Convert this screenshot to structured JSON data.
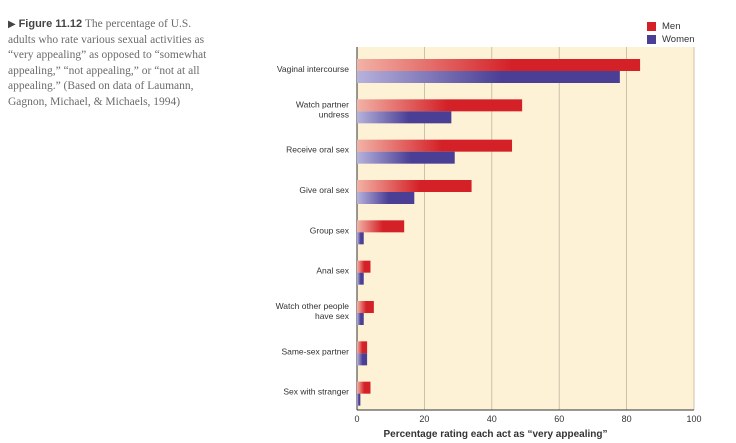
{
  "caption": {
    "label": "Figure 11.12",
    "lines": [
      "The percentage of U.S.",
      "adults who rate various sexual activities as",
      "“very appealing” as opposed to “somewhat",
      "appealing,” “not appealing,” or “not at all",
      "appealing.” (Based on data of Laumann,",
      "Gagnon, Michael, & Michaels, 1994)"
    ]
  },
  "colors": {
    "men": "#d42027",
    "men_light": "#f2b2a6",
    "women": "#4a3f95",
    "women_light": "#b7b2dc",
    "plot_bg": "#fdf1d6"
  },
  "chart_data": {
    "type": "bar",
    "orientation": "horizontal",
    "categories": [
      [
        "Vaginal intercourse"
      ],
      [
        "Watch partner",
        "undress"
      ],
      [
        "Receive oral sex"
      ],
      [
        "Give oral sex"
      ],
      [
        "Group sex"
      ],
      [
        "Anal sex"
      ],
      [
        "Watch other people",
        "have sex"
      ],
      [
        "Same-sex partner"
      ],
      [
        "Sex with stranger"
      ]
    ],
    "series": [
      {
        "name": "Men",
        "values": [
          84,
          49,
          46,
          34,
          14,
          4,
          5,
          3,
          4
        ]
      },
      {
        "name": "Women",
        "values": [
          78,
          28,
          29,
          17,
          2,
          2,
          2,
          3,
          1
        ]
      }
    ],
    "xlabel": "Percentage rating each act as “very appealing”",
    "xlim": [
      0,
      100
    ],
    "xticks": [
      0,
      20,
      40,
      60,
      80,
      100
    ],
    "grid": true,
    "legend": "top-right"
  }
}
